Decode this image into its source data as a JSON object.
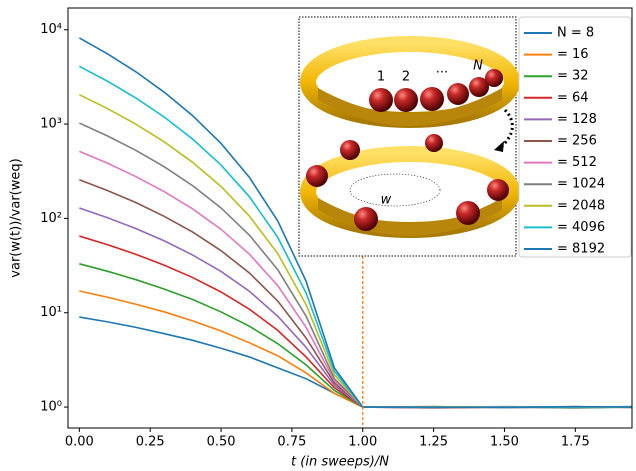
{
  "chart_data": {
    "type": "line",
    "x_label": "t (in sweeps)/N",
    "y_label": "var(w(t))/var(weq)",
    "log_y": true,
    "xlim": [
      -0.04,
      1.95
    ],
    "ylim": [
      0.6,
      17000
    ],
    "xticks": [
      {
        "value": 0,
        "label": "0.00"
      },
      0.25,
      {
        "value": 0.5,
        "label": "0.50"
      },
      0.75,
      {
        "value": 1,
        "label": "1.00"
      },
      1.25,
      {
        "value": 1.5,
        "label": "1.50"
      },
      1.75
    ],
    "yticks": [
      {
        "value": 1,
        "label": "10⁰"
      },
      {
        "value": 10,
        "label": "10¹"
      },
      {
        "value": 100,
        "label": "10²"
      },
      {
        "value": 1000,
        "label": "10³"
      },
      {
        "value": 10000,
        "label": "10⁴"
      }
    ],
    "vline": {
      "x": 1,
      "color": "#ff7f0e"
    },
    "x": [
      0,
      0.1,
      0.2,
      0.3,
      0.4,
      0.5,
      0.6,
      0.7,
      0.8,
      0.9,
      1.0,
      1.25,
      1.5,
      1.75,
      1.95
    ],
    "series": [
      {
        "name": "N = 8",
        "color": "#1f77b4",
        "values": [
          9,
          8.0,
          7.0,
          6.0,
          5.1,
          4.2,
          3.4,
          2.6,
          2.0,
          1.4,
          1.0,
          0.99,
          1.0,
          0.98,
          1.0
        ]
      },
      {
        "name": "= 16",
        "color": "#ff7f0e",
        "values": [
          17,
          14.6,
          12.3,
          10.2,
          8.2,
          6.4,
          4.8,
          3.5,
          2.3,
          1.4,
          1.0,
          1.01,
          0.99,
          1.0,
          1.01
        ]
      },
      {
        "name": "= 32",
        "color": "#2ca02c",
        "values": [
          33,
          27.5,
          22.4,
          17.8,
          13.8,
          10.2,
          7.2,
          4.7,
          2.8,
          1.5,
          1.0,
          1.0,
          1.01,
          0.99,
          1.0
        ]
      },
      {
        "name": "= 64",
        "color": "#d62728",
        "values": [
          65,
          52.6,
          41.6,
          31.9,
          23.6,
          16.6,
          10.9,
          6.5,
          3.4,
          1.6,
          1.0,
          0.98,
          1.0,
          1.01,
          0.99
        ]
      },
      {
        "name": "= 128",
        "color": "#9467bd",
        "values": [
          129,
          101.7,
          77.9,
          57.8,
          40.9,
          27.4,
          16.9,
          9.2,
          4.3,
          1.7,
          1.0,
          1.01,
          0.99,
          1.0,
          1.0
        ]
      },
      {
        "name": "= 256",
        "color": "#8c564b",
        "values": [
          257,
          197,
          147,
          105,
          71.7,
          45.5,
          26.4,
          13.3,
          5.4,
          1.8,
          1.0,
          1.0,
          1.0,
          0.99,
          1.01
        ]
      },
      {
        "name": "= 512",
        "color": "#e377c2",
        "values": [
          513,
          384,
          277,
          192,
          126,
          76.6,
          41.8,
          19.4,
          7.0,
          1.9,
          1.0,
          0.99,
          1.01,
          1.0,
          1.0
        ]
      },
      {
        "name": "= 1024",
        "color": "#7f7f7f",
        "values": [
          1025,
          747,
          525,
          352,
          222,
          129,
          66.5,
          28.6,
          9.2,
          2.0,
          1.0,
          1.0,
          0.99,
          1.01,
          0.99
        ]
      },
      {
        "name": "= 2048",
        "color": "#bcbd22",
        "values": [
          2049,
          1457,
          995,
          646,
          392,
          218,
          106,
          42.4,
          12.2,
          2.2,
          1.0,
          1.01,
          1.0,
          0.99,
          1.0
        ]
      },
      {
        "name": "= 4096",
        "color": "#17becf",
        "values": [
          4097,
          2839,
          1885,
          1185,
          693,
          368,
          170,
          63,
          16.2,
          2.4,
          1.0,
          0.99,
          1.0,
          1.0,
          1.01
        ]
      },
      {
        "name": "= 8192",
        "color": "#1f77b4",
        "values": [
          8193,
          5539,
          3573,
          2172,
          1226,
          623,
          272,
          94,
          21.6,
          2.6,
          1.0,
          1.0,
          0.99,
          1.01,
          1.0
        ]
      }
    ],
    "inset_labels": [
      "1",
      "2",
      "···",
      "N",
      "w"
    ]
  }
}
